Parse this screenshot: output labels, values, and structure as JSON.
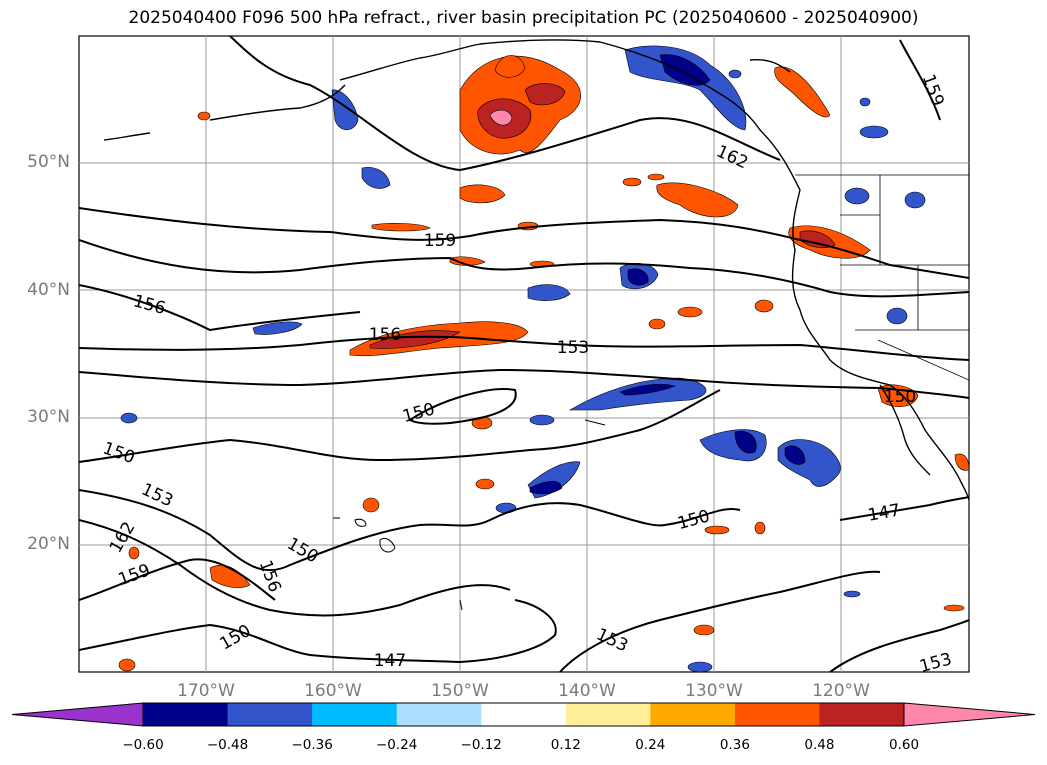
{
  "title": "2025040400 F096 500 hPa refract., river basin precipitation PC (2025040600 - 2025040900)",
  "map": {
    "lon_range": [
      -180,
      -110
    ],
    "lat_range": [
      10,
      60
    ],
    "lat_labels": [
      "50°N",
      "40°N",
      "30°N",
      "20°N"
    ],
    "lon_labels": [
      "170°W",
      "160°W",
      "150°W",
      "140°W",
      "130°W",
      "120°W"
    ]
  },
  "contour_labels": [
    "159",
    "162",
    "156",
    "156",
    "153",
    "150",
    "150",
    "153",
    "162",
    "159",
    "156",
    "150",
    "150",
    "150",
    "147",
    "153",
    "147",
    "153",
    "159",
    "150"
  ],
  "colorbar": {
    "colors": [
      "#9933cc",
      "#000088",
      "#3355cc",
      "#00bbff",
      "#aaddff",
      "#ffffff",
      "#ffee99",
      "#ffaa00",
      "#ff5500",
      "#bb2222",
      "#ff88aa"
    ],
    "ticks": [
      "−0.60",
      "−0.48",
      "−0.36",
      "−0.24",
      "−0.12",
      "0.12",
      "0.24",
      "0.36",
      "0.48",
      "0.60"
    ]
  }
}
